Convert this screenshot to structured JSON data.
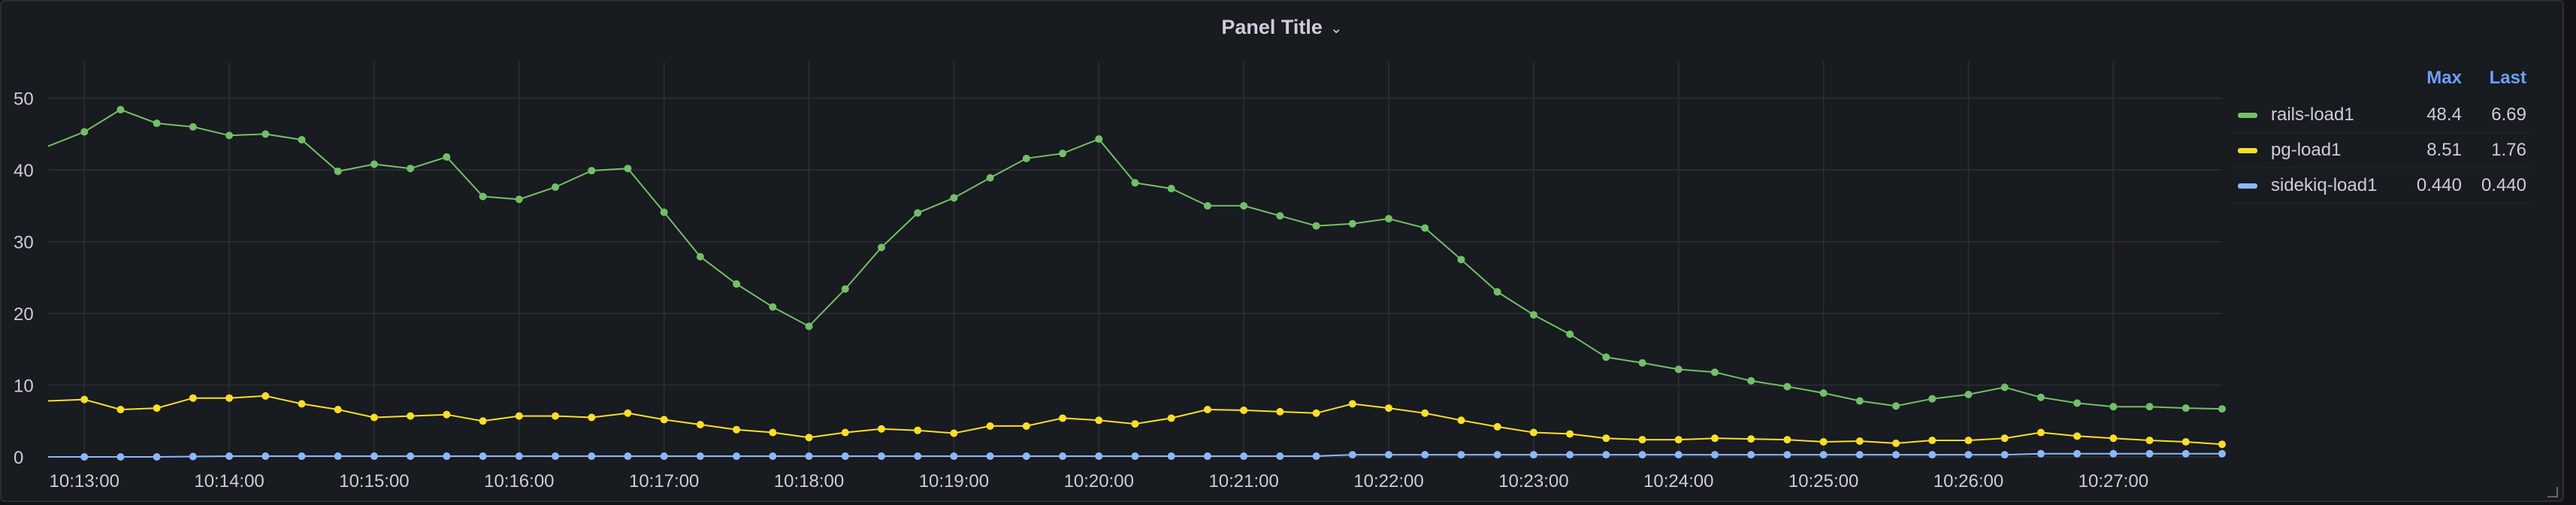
{
  "panel": {
    "title": "Panel Title"
  },
  "colors": {
    "background": "#181b1f",
    "grid": "#2c3036",
    "axis_text": "#ccccdc",
    "legend_header": "#6e9fff"
  },
  "legend_headers": {
    "max": "Max",
    "last": "Last"
  },
  "chart_data": {
    "type": "line",
    "x": [
      "10:12:45",
      "10:13:00",
      "10:13:15",
      "10:13:30",
      "10:13:45",
      "10:14:00",
      "10:14:15",
      "10:14:30",
      "10:14:45",
      "10:15:00",
      "10:15:15",
      "10:15:30",
      "10:15:45",
      "10:16:00",
      "10:16:15",
      "10:16:30",
      "10:16:45",
      "10:17:00",
      "10:17:15",
      "10:17:30",
      "10:17:45",
      "10:18:00",
      "10:18:15",
      "10:18:30",
      "10:18:45",
      "10:19:00",
      "10:19:15",
      "10:19:30",
      "10:19:45",
      "10:20:00",
      "10:20:15",
      "10:20:30",
      "10:20:45",
      "10:21:00",
      "10:21:15",
      "10:21:30",
      "10:21:45",
      "10:22:00",
      "10:22:15",
      "10:22:30",
      "10:22:45",
      "10:23:00",
      "10:23:15",
      "10:23:30",
      "10:23:45",
      "10:24:00",
      "10:24:15",
      "10:24:30",
      "10:24:45",
      "10:25:00",
      "10:25:15",
      "10:25:30",
      "10:25:45",
      "10:26:00",
      "10:26:15",
      "10:26:30",
      "10:26:45",
      "10:27:00",
      "10:27:15",
      "10:27:30",
      "10:27:45"
    ],
    "x_ticks": [
      "10:13:00",
      "10:14:00",
      "10:15:00",
      "10:16:00",
      "10:17:00",
      "10:18:00",
      "10:19:00",
      "10:20:00",
      "10:21:00",
      "10:22:00",
      "10:23:00",
      "10:24:00",
      "10:25:00",
      "10:26:00",
      "10:27:00"
    ],
    "y_ticks": [
      0,
      10,
      20,
      30,
      40,
      50
    ],
    "ylim": [
      0,
      53
    ],
    "grid": true,
    "legend_position": "right",
    "series": [
      {
        "name": "rails-load1",
        "color": "#73bf69",
        "max": "48.4",
        "last": "6.69",
        "values": [
          null,
          45.3,
          48.4,
          46.5,
          46.0,
          44.8,
          45.0,
          44.2,
          39.8,
          40.8,
          40.2,
          41.8,
          36.3,
          35.9,
          37.6,
          39.9,
          40.2,
          34.1,
          27.9,
          24.1,
          20.9,
          18.2,
          23.4,
          29.2,
          34.0,
          36.1,
          38.9,
          41.6,
          42.3,
          44.3,
          38.2,
          37.4,
          35.0,
          35.0,
          33.6,
          32.2,
          32.5,
          33.2,
          31.9,
          27.5,
          23.0,
          19.8,
          17.1,
          13.9,
          13.1,
          12.2,
          11.8,
          10.6,
          9.8,
          8.9,
          7.8,
          7.1,
          8.1,
          8.7,
          9.7,
          8.3,
          7.5,
          7.0,
          7.0,
          6.8,
          6.69
        ]
      },
      {
        "name": "pg-load1",
        "color": "#fade2a",
        "max": "8.51",
        "last": "1.76",
        "values": [
          null,
          8.0,
          6.6,
          6.8,
          8.2,
          8.2,
          8.5,
          7.4,
          6.6,
          5.5,
          5.7,
          5.9,
          5.0,
          5.7,
          5.7,
          5.5,
          6.1,
          5.2,
          4.5,
          3.8,
          3.4,
          2.7,
          3.4,
          3.9,
          3.7,
          3.3,
          4.3,
          4.3,
          5.4,
          5.1,
          4.6,
          5.4,
          6.6,
          6.5,
          6.3,
          6.1,
          7.4,
          6.8,
          6.1,
          5.1,
          4.2,
          3.4,
          3.2,
          2.6,
          2.4,
          2.4,
          2.6,
          2.5,
          2.4,
          2.1,
          2.2,
          1.9,
          2.3,
          2.3,
          2.6,
          3.4,
          2.9,
          2.6,
          2.3,
          2.1,
          1.76
        ]
      },
      {
        "name": "sidekiq-load1",
        "color": "#8ab8ff",
        "max": "0.440",
        "last": "0.440",
        "values": [
          null,
          0.0,
          0.0,
          0.0,
          0.05,
          0.1,
          0.1,
          0.1,
          0.1,
          0.1,
          0.1,
          0.1,
          0.1,
          0.1,
          0.1,
          0.1,
          0.1,
          0.1,
          0.1,
          0.1,
          0.1,
          0.1,
          0.1,
          0.1,
          0.1,
          0.1,
          0.1,
          0.1,
          0.1,
          0.1,
          0.1,
          0.1,
          0.1,
          0.1,
          0.1,
          0.1,
          0.3,
          0.3,
          0.3,
          0.3,
          0.3,
          0.3,
          0.3,
          0.3,
          0.3,
          0.3,
          0.3,
          0.3,
          0.3,
          0.3,
          0.3,
          0.3,
          0.3,
          0.3,
          0.3,
          0.44,
          0.44,
          0.44,
          0.44,
          0.44,
          0.44
        ]
      }
    ]
  }
}
